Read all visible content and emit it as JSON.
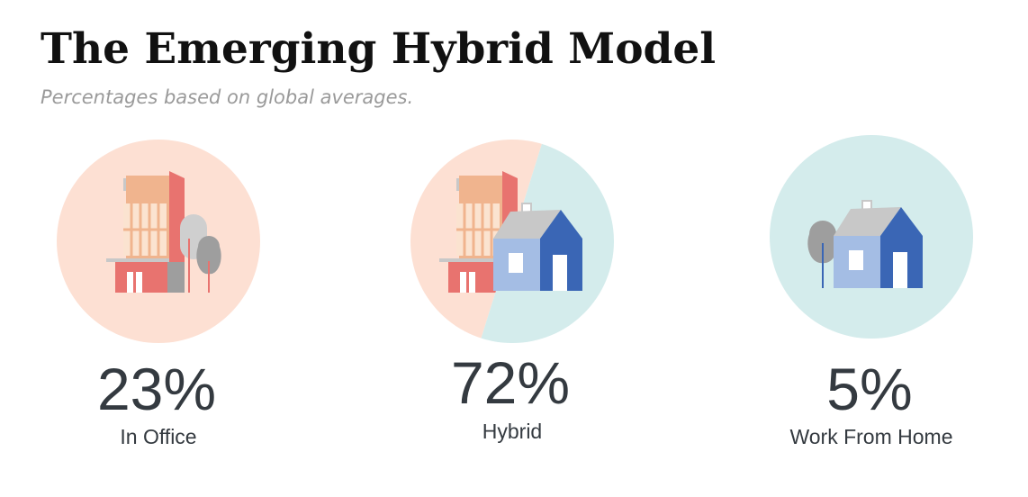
{
  "header": {
    "title": "The Emerging Hybrid Model",
    "subtitle": "Percentages based on global averages."
  },
  "items": [
    {
      "value": "23%",
      "label": "In Office"
    },
    {
      "value": "72%",
      "label": "Hybrid"
    },
    {
      "value": "5%",
      "label": "Work From Home"
    }
  ]
}
